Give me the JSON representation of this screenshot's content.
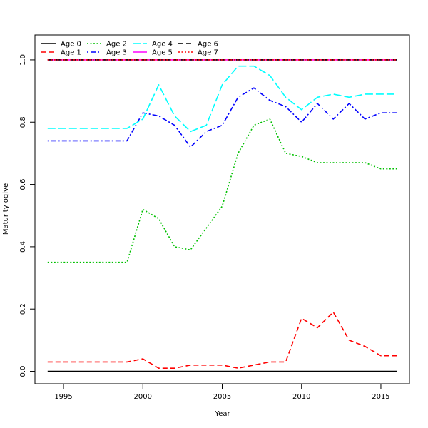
{
  "chart_data": {
    "type": "line",
    "title": "",
    "xlabel": "Year",
    "ylabel": "Maturity ogive",
    "xlim": [
      1993.2,
      2016.8
    ],
    "ylim": [
      -0.04,
      1.08
    ],
    "x_ticks": [
      1995,
      2000,
      2005,
      2010,
      2015
    ],
    "y_ticks": [
      0.0,
      0.2,
      0.4,
      0.6,
      0.8,
      1.0
    ],
    "x_tick_labels": [
      "1995",
      "2000",
      "2005",
      "2010",
      "2015"
    ],
    "y_tick_labels": [
      "0.0",
      "0.2",
      "0.4",
      "0.6",
      "0.8",
      "1.0"
    ],
    "grid": false,
    "legend_position": "top-left",
    "x": [
      1994,
      1995,
      1996,
      1997,
      1998,
      1999,
      2000,
      2001,
      2002,
      2003,
      2004,
      2005,
      2006,
      2007,
      2008,
      2009,
      2010,
      2011,
      2012,
      2013,
      2014,
      2015,
      2016
    ],
    "series": [
      {
        "name": "Age 0",
        "color": "#000000",
        "dash": "solid",
        "values": [
          0,
          0,
          0,
          0,
          0,
          0,
          0,
          0,
          0,
          0,
          0,
          0,
          0,
          0,
          0,
          0,
          0,
          0,
          0,
          0,
          0,
          0,
          0
        ]
      },
      {
        "name": "Age 1",
        "color": "#ff0000",
        "dash": "dashed",
        "values": [
          0.03,
          0.03,
          0.03,
          0.03,
          0.03,
          0.03,
          0.04,
          0.01,
          0.01,
          0.02,
          0.02,
          0.02,
          0.01,
          0.02,
          0.03,
          0.03,
          0.17,
          0.14,
          0.19,
          0.1,
          0.08,
          0.05,
          0.05
        ]
      },
      {
        "name": "Age 2",
        "color": "#00c000",
        "dash": "dotted",
        "values": [
          0.35,
          0.35,
          0.35,
          0.35,
          0.35,
          0.35,
          0.52,
          0.49,
          0.4,
          0.39,
          0.46,
          0.53,
          0.7,
          0.79,
          0.81,
          0.7,
          0.69,
          0.67,
          0.67,
          0.67,
          0.67,
          0.65,
          0.65
        ]
      },
      {
        "name": "Age 3",
        "color": "#0000ff",
        "dash": "dotdash",
        "values": [
          0.74,
          0.74,
          0.74,
          0.74,
          0.74,
          0.74,
          0.83,
          0.82,
          0.79,
          0.72,
          0.77,
          0.79,
          0.88,
          0.91,
          0.87,
          0.85,
          0.8,
          0.86,
          0.81,
          0.86,
          0.81,
          0.83,
          0.83
        ]
      },
      {
        "name": "Age 4",
        "color": "#00ffff",
        "dash": "longdash",
        "values": [
          0.78,
          0.78,
          0.78,
          0.78,
          0.78,
          0.78,
          0.81,
          0.92,
          0.82,
          0.77,
          0.79,
          0.92,
          0.98,
          0.98,
          0.95,
          0.88,
          0.84,
          0.88,
          0.89,
          0.88,
          0.89,
          0.89,
          0.89
        ]
      },
      {
        "name": "Age 5",
        "color": "#ff00ff",
        "dash": "solid",
        "values": [
          1,
          1,
          1,
          1,
          1,
          1,
          1,
          1,
          1,
          1,
          1,
          1,
          1,
          1,
          1,
          1,
          1,
          1,
          1,
          1,
          1,
          1,
          1
        ]
      },
      {
        "name": "Age 6",
        "color": "#000000",
        "dash": "dashed",
        "values": [
          1,
          1,
          1,
          1,
          1,
          1,
          1,
          1,
          1,
          1,
          1,
          1,
          1,
          1,
          1,
          1,
          1,
          1,
          1,
          1,
          1,
          1,
          1
        ]
      },
      {
        "name": "Age 7",
        "color": "#ff0000",
        "dash": "dotted",
        "values": [
          1,
          1,
          1,
          1,
          1,
          1,
          1,
          1,
          1,
          1,
          1,
          1,
          1,
          1,
          1,
          1,
          1,
          1,
          1,
          1,
          1,
          1,
          1
        ]
      }
    ]
  }
}
